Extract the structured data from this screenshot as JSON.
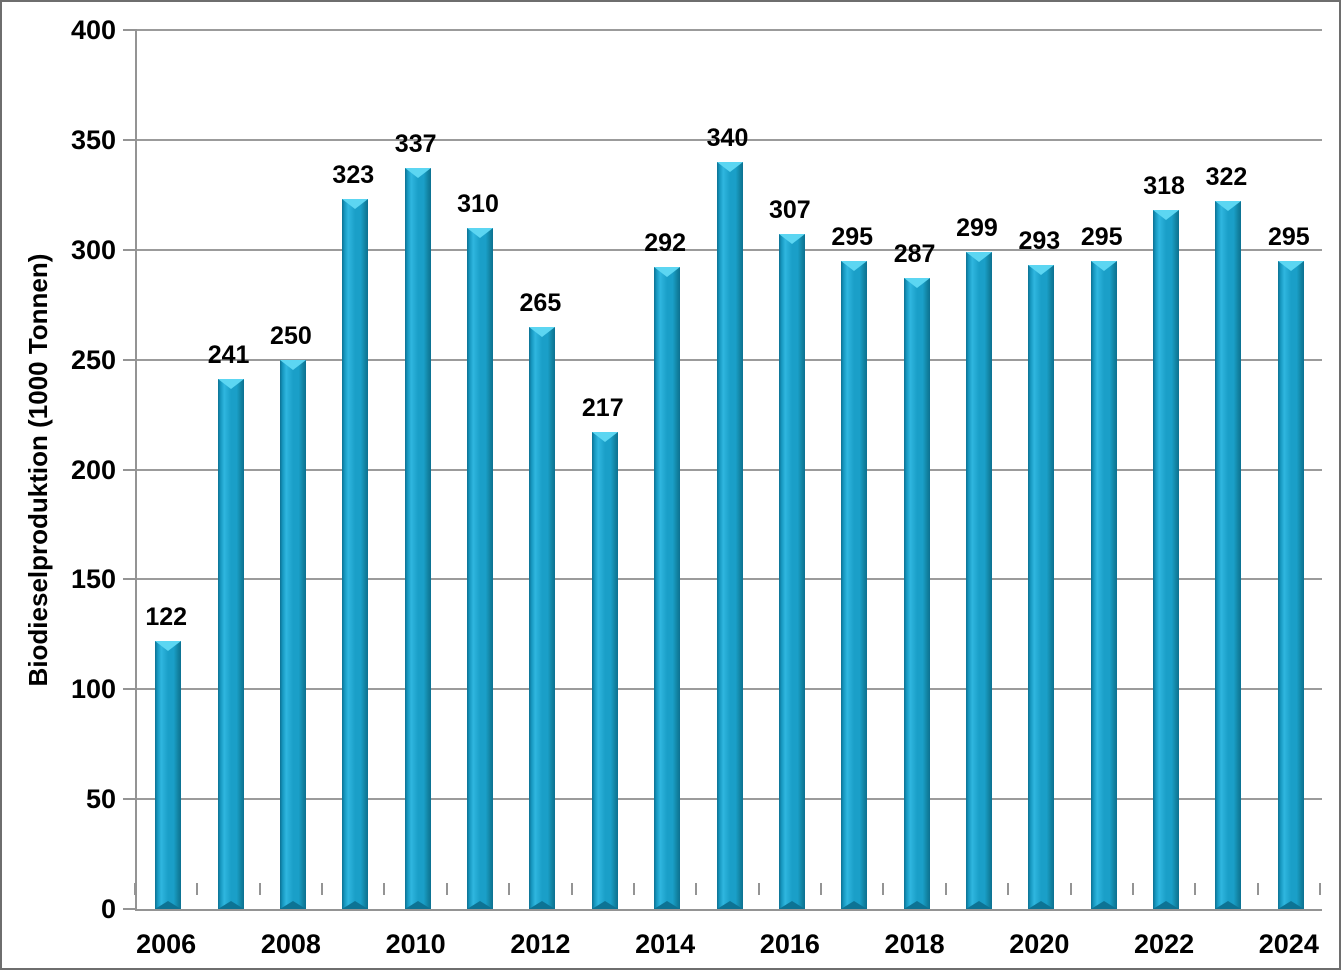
{
  "chart_data": {
    "type": "bar",
    "title": "",
    "xlabel": "",
    "ylabel": "Biodieselproduktion (1000 Tonnen)",
    "categories": [
      "2006",
      "2007",
      "2008",
      "2009",
      "2010",
      "2011",
      "2012",
      "2013",
      "2014",
      "2015",
      "2016",
      "2017",
      "2018",
      "2019",
      "2020",
      "2021",
      "2022",
      "2023",
      "2024"
    ],
    "values": [
      122,
      241,
      250,
      323,
      337,
      310,
      265,
      217,
      292,
      340,
      307,
      295,
      287,
      299,
      293,
      295,
      318,
      322,
      295
    ],
    "data_labels": [
      "122",
      "241",
      "250",
      "323",
      "337",
      "310",
      "265",
      "217",
      "292",
      "340",
      "307",
      "295",
      "287",
      "299",
      "293",
      "295",
      "318",
      "322",
      "295"
    ],
    "ylim": [
      0,
      400
    ],
    "yticks": [
      0,
      50,
      100,
      150,
      200,
      250,
      300,
      350,
      400
    ],
    "ytick_labels": [
      "0",
      "50",
      "100",
      "150",
      "200",
      "250",
      "300",
      "350",
      "400"
    ],
    "xtick_labels": [
      "2006",
      "2008",
      "2010",
      "2012",
      "2014",
      "2016",
      "2018",
      "2020",
      "2022",
      "2024"
    ],
    "grid": "horizontal",
    "legend": "none",
    "colors": {
      "bar_main": "#1a9fc8",
      "bar_edge": "#0c7092",
      "bar_top_highlight": "#5cd6f2",
      "bar_bottom_shade": "#0d7394",
      "gridline": "#9b9b9b",
      "axis_line": "#949494",
      "text": "#000000",
      "background": "#ffffff",
      "frame_border": "#6e6e6e"
    }
  }
}
